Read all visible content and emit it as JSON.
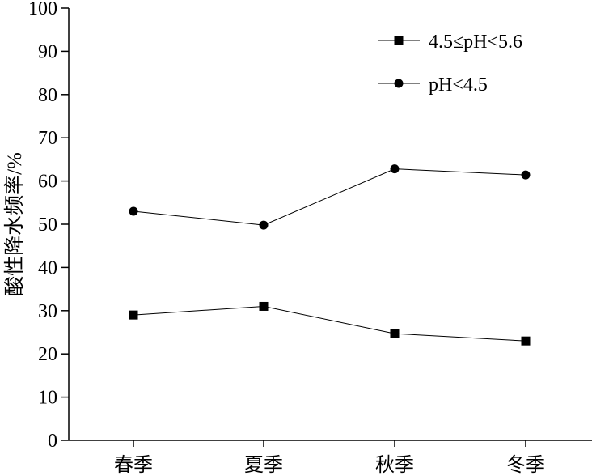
{
  "chart_data": {
    "type": "line",
    "title": "",
    "xlabel": "",
    "ylabel": "酸性降水频率/%",
    "ylim": [
      0,
      100
    ],
    "yticks": [
      0,
      10,
      20,
      30,
      40,
      50,
      60,
      70,
      80,
      90,
      100
    ],
    "categories": [
      "春季",
      "夏季",
      "秋季",
      "冬季"
    ],
    "grid": false,
    "legend_position": "top-right",
    "series": [
      {
        "name": "4.5≤pH<5.6",
        "marker": "square",
        "color": "#000000",
        "values": [
          29,
          31,
          24.7,
          23
        ]
      },
      {
        "name": "pH<4.5",
        "marker": "circle",
        "color": "#000000",
        "values": [
          53,
          49.8,
          62.8,
          61.4
        ]
      }
    ]
  }
}
